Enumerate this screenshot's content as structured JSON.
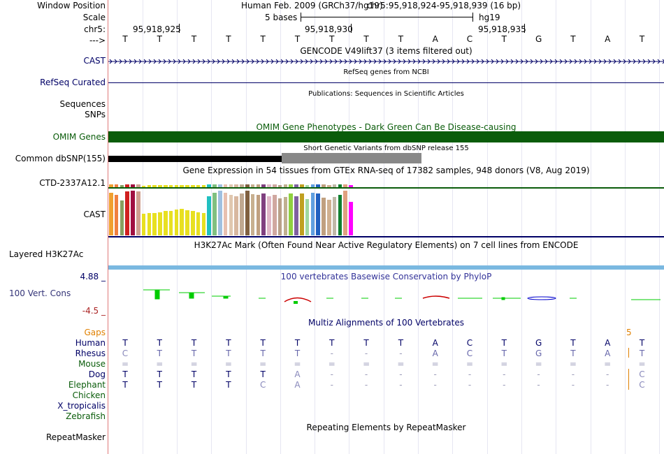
{
  "header": {
    "window_position_label": "Window Position",
    "scale_label": "Scale",
    "chrom_label": "chr5:",
    "strand_label": "--->",
    "assembly": "Human Feb. 2009 (GRCh37/hg19)",
    "position": "chr5:95,918,924-95,918,939 (16 bp)",
    "scale_text": "5 bases",
    "db": "hg19",
    "ticks": [
      "95,918,925",
      "95,918,930",
      "95,918,935"
    ]
  },
  "sequence": [
    "T",
    "T",
    "T",
    "T",
    "T",
    "T",
    "T",
    "T",
    "T",
    "A",
    "C",
    "T",
    "G",
    "T",
    "A",
    "T"
  ],
  "tracks": {
    "gencode": {
      "title": "GENCODE V49lift37 (3 items filtered out)",
      "label": "CAST"
    },
    "refseq": {
      "title": "RefSeq genes from NCBI",
      "label": "RefSeq Curated"
    },
    "publications": {
      "title": "Publications: Sequences in Scientific Articles",
      "label1": "Sequences",
      "label2": "SNPs"
    },
    "omim": {
      "title": "OMIM Gene Phenotypes - Dark Green Can Be Disease-causing",
      "label": "OMIM Genes"
    },
    "dbsnp": {
      "title": "Short Genetic Variants from dbSNP release 155",
      "label": "Common dbSNP(155)"
    },
    "gtex": {
      "title": "Gene Expression in 54 tissues from GTEx RNA-seq of 17382 samples, 948 donors (V8, Aug 2019)",
      "label1": "CTD-2337A12.1",
      "label2": "CAST"
    },
    "h3k27ac": {
      "title": "H3K27Ac Mark (Often Found Near Active Regulatory Elements) on 7 cell lines from ENCODE",
      "label": "Layered H3K27Ac"
    },
    "phylop": {
      "title": "100 vertebrates Basewise Conservation by PhyloP",
      "label": "100 Vert. Cons",
      "max": "4.88 _",
      "min": "-4.5 _"
    },
    "multiz": {
      "title": "Multiz Alignments of 100 Vertebrates",
      "gaps_label": "Gaps",
      "gap_number": "5",
      "species": [
        {
          "name": "Human",
          "bases": [
            "T",
            "T",
            "T",
            "T",
            "T",
            "T",
            "T",
            "T",
            "T",
            "A",
            "C",
            "T",
            "G",
            "T",
            "A",
            "T"
          ]
        },
        {
          "name": "Rhesus",
          "bases": [
            "C",
            "T",
            "T",
            "T",
            "T",
            "T",
            "-",
            "-",
            "-",
            "A",
            "C",
            "T",
            "G",
            "T",
            "A",
            "T"
          ]
        },
        {
          "name": "Mouse",
          "bases": [
            "=",
            "=",
            "=",
            "=",
            "=",
            "=",
            "=",
            "=",
            "=",
            "=",
            "=",
            "=",
            "=",
            "=",
            "=",
            "="
          ]
        },
        {
          "name": "Dog",
          "bases": [
            "T",
            "T",
            "T",
            "T",
            "T",
            "A",
            "-",
            "-",
            "-",
            "-",
            "-",
            "-",
            "-",
            "-",
            "-",
            "C"
          ]
        },
        {
          "name": "Elephant",
          "bases": [
            "T",
            "T",
            "T",
            "T",
            "C",
            "A",
            "-",
            "-",
            "-",
            "-",
            "-",
            "-",
            "-",
            "-",
            "-",
            "C"
          ]
        },
        {
          "name": "Chicken",
          "bases": []
        },
        {
          "name": "X_tropicalis",
          "bases": []
        },
        {
          "name": "Zebrafish",
          "bases": []
        }
      ]
    },
    "repeatmasker": {
      "title": "Repeating Elements by RepeatMasker",
      "label": "RepeatMasker"
    }
  },
  "colors": {
    "navy": "#000066",
    "omim": "#0a5c0a",
    "conservation_positive": "#00cc00",
    "conservation_negative": "#cc0000",
    "h3k27ac": "#7ab8e0",
    "gaps": "#e08000"
  },
  "gtex_bar_colors": [
    "#f0a030",
    "#f08040",
    "#88a060",
    "#d02020",
    "#a01040",
    "#d0a090",
    "#e8e020",
    "#e8e020",
    "#e8e020",
    "#e8e020",
    "#e8e020",
    "#e8e020",
    "#e8e020",
    "#e8e020",
    "#e8e020",
    "#e8e020",
    "#e8e020",
    "#e8e020",
    "#20c0c0",
    "#80c080",
    "#a0c0e0",
    "#e8c0b0",
    "#e0c8b0",
    "#d8b8a0",
    "#c0a890",
    "#806040",
    "#c8b090",
    "#c0a080",
    "#804080",
    "#e0b8c8",
    "#d0a8a0",
    "#b8a088",
    "#c0b090",
    "#90d040",
    "#8060a0",
    "#c0a020",
    "#a0d8a0",
    "#60a0e0",
    "#2060c0",
    "#c0a080",
    "#d0b090",
    "#c0b8a8",
    "#108030",
    "#e0a080",
    "#ff00ff"
  ],
  "gtex_values": [
    0.95,
    0.9,
    0.78,
    0.98,
    1.0,
    0.98,
    0.48,
    0.5,
    0.5,
    0.52,
    0.54,
    0.55,
    0.58,
    0.6,
    0.56,
    0.54,
    0.52,
    0.5,
    0.88,
    0.96,
    1.0,
    0.95,
    0.9,
    0.88,
    0.93,
    1.0,
    0.92,
    0.9,
    0.93,
    0.88,
    0.9,
    0.83,
    0.86,
    0.94,
    0.88,
    0.94,
    0.82,
    0.95,
    0.94,
    0.85,
    0.8,
    0.86,
    0.9,
    1.0,
    0.75
  ]
}
